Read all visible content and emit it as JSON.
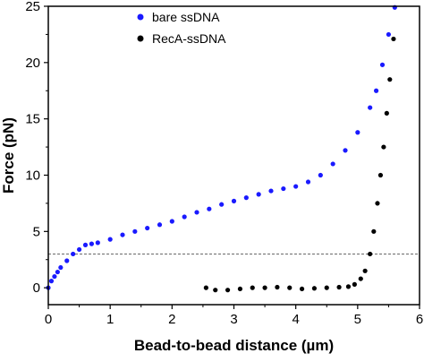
{
  "chart_data": {
    "type": "scatter",
    "title": "",
    "xlabel": "Bead-to-bead distance (µm)",
    "ylabel": "Force (pN)",
    "xlim": [
      0,
      6
    ],
    "ylim": [
      -1.5,
      25
    ],
    "x_ticks": [
      0,
      1,
      2,
      3,
      4,
      5,
      6
    ],
    "x_tick_labels": [
      "0",
      "1",
      "2",
      "3",
      "4",
      "5",
      "6"
    ],
    "y_ticks": [
      0,
      5,
      10,
      15,
      20,
      25
    ],
    "y_tick_labels": [
      "0",
      "5",
      "10",
      "15",
      "20",
      "25"
    ],
    "grid": false,
    "legend_position": "top-center",
    "reference_line": {
      "y": 3,
      "style": "dashed"
    },
    "series": [
      {
        "name": "bare ssDNA",
        "color": "#1a1aff",
        "marker": "circle",
        "points": [
          [
            0.0,
            0.0
          ],
          [
            0.05,
            0.6
          ],
          [
            0.1,
            1.0
          ],
          [
            0.15,
            1.4
          ],
          [
            0.2,
            1.8
          ],
          [
            0.3,
            2.4
          ],
          [
            0.4,
            3.0
          ],
          [
            0.5,
            3.4
          ],
          [
            0.6,
            3.8
          ],
          [
            0.7,
            3.9
          ],
          [
            0.8,
            4.0
          ],
          [
            1.0,
            4.3
          ],
          [
            1.2,
            4.7
          ],
          [
            1.4,
            5.0
          ],
          [
            1.6,
            5.3
          ],
          [
            1.8,
            5.6
          ],
          [
            2.0,
            5.9
          ],
          [
            2.2,
            6.3
          ],
          [
            2.4,
            6.7
          ],
          [
            2.6,
            7.0
          ],
          [
            2.8,
            7.4
          ],
          [
            3.0,
            7.7
          ],
          [
            3.2,
            8.0
          ],
          [
            3.4,
            8.3
          ],
          [
            3.6,
            8.6
          ],
          [
            3.8,
            8.8
          ],
          [
            4.0,
            9.0
          ],
          [
            4.2,
            9.4
          ],
          [
            4.4,
            10.0
          ],
          [
            4.6,
            11.0
          ],
          [
            4.8,
            12.2
          ],
          [
            5.0,
            13.8
          ],
          [
            5.2,
            16.0
          ],
          [
            5.3,
            17.5
          ],
          [
            5.4,
            19.8
          ],
          [
            5.5,
            22.5
          ],
          [
            5.6,
            24.9
          ]
        ]
      },
      {
        "name": "RecA-ssDNA",
        "color": "#000000",
        "marker": "circle",
        "points": [
          [
            2.55,
            0.0
          ],
          [
            2.7,
            -0.2
          ],
          [
            2.9,
            -0.2
          ],
          [
            3.1,
            -0.1
          ],
          [
            3.3,
            0.0
          ],
          [
            3.5,
            0.0
          ],
          [
            3.7,
            0.05
          ],
          [
            3.9,
            0.0
          ],
          [
            4.1,
            -0.1
          ],
          [
            4.3,
            -0.05
          ],
          [
            4.5,
            0.0
          ],
          [
            4.7,
            0.05
          ],
          [
            4.85,
            0.1
          ],
          [
            4.95,
            0.3
          ],
          [
            5.05,
            0.8
          ],
          [
            5.12,
            1.5
          ],
          [
            5.2,
            3.0
          ],
          [
            5.26,
            5.0
          ],
          [
            5.32,
            7.5
          ],
          [
            5.37,
            10.0
          ],
          [
            5.42,
            12.5
          ],
          [
            5.47,
            15.5
          ],
          [
            5.52,
            18.5
          ],
          [
            5.58,
            22.1
          ]
        ]
      }
    ]
  }
}
